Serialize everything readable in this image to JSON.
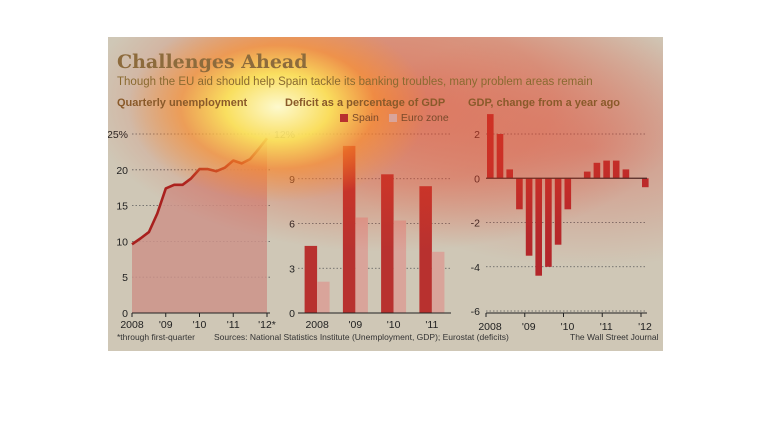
{
  "header": {
    "title": "Challenges Ahead",
    "subtitle": "Though the EU aid should help Spain tackle its banking troubles, many problem areas remain"
  },
  "footer": {
    "note": "*through first-quarter",
    "sources": "Sources: National Statistics Institute (Unemployment, GDP); Eurostat (deficits)",
    "credit": "The Wall Street Journal"
  },
  "colors": {
    "spain": "#b8312f",
    "euro_zone": "#d9a49a",
    "gdp_bar": "#b3262a",
    "unemployment_line": "#a8201e",
    "unemployment_fill": "#cc9389"
  },
  "chart_data": [
    {
      "type": "area",
      "title": "Quarterly unemployment",
      "y_tick_labels": [
        "25%",
        "20",
        "15",
        "10",
        "5",
        "0"
      ],
      "x_tick_labels": [
        "2008",
        "'09",
        "'10",
        "'11",
        "'12*"
      ],
      "ylim": [
        0,
        25
      ],
      "grid": true,
      "x": [
        2008.0,
        2008.25,
        2008.5,
        2008.75,
        2009.0,
        2009.25,
        2009.5,
        2009.75,
        2010.0,
        2010.25,
        2010.5,
        2010.75,
        2011.0,
        2011.25,
        2011.5,
        2011.75,
        2012.0
      ],
      "values": [
        9.6,
        10.4,
        11.3,
        13.9,
        17.4,
        17.9,
        17.9,
        18.8,
        20.1,
        20.1,
        19.8,
        20.3,
        21.3,
        20.9,
        21.5,
        22.9,
        24.4
      ]
    },
    {
      "type": "bar",
      "title": "Deficit as a percentage of GDP",
      "categories": [
        "2008",
        "'09",
        "'10",
        "'11"
      ],
      "series": [
        {
          "name": "Spain",
          "values": [
            4.5,
            11.2,
            9.3,
            8.5
          ]
        },
        {
          "name": "Euro zone",
          "values": [
            2.1,
            6.4,
            6.2,
            4.1
          ]
        }
      ],
      "y_tick_labels": [
        "12%",
        "9",
        "6",
        "3",
        "0"
      ],
      "ylim": [
        0,
        12
      ],
      "grid": true,
      "legend": "top"
    },
    {
      "type": "bar",
      "title": "GDP, change from a year ago",
      "x": [
        2008.0,
        2008.25,
        2008.5,
        2008.75,
        2009.0,
        2009.25,
        2009.5,
        2009.75,
        2010.0,
        2010.25,
        2010.5,
        2010.75,
        2011.0,
        2011.25,
        2011.5,
        2011.75,
        2012.0
      ],
      "values": [
        2.9,
        2.0,
        0.4,
        -1.4,
        -3.5,
        -4.4,
        -4.0,
        -3.0,
        -1.4,
        0.0,
        0.3,
        0.7,
        0.8,
        0.8,
        0.4,
        0.0,
        -0.4
      ],
      "y_tick_labels": [
        "2",
        "0",
        "-2",
        "-4",
        "-6"
      ],
      "x_tick_labels": [
        "2008",
        "'09",
        "'10",
        "'11",
        "'12"
      ],
      "ylim": [
        -6,
        2
      ],
      "grid": true
    }
  ]
}
